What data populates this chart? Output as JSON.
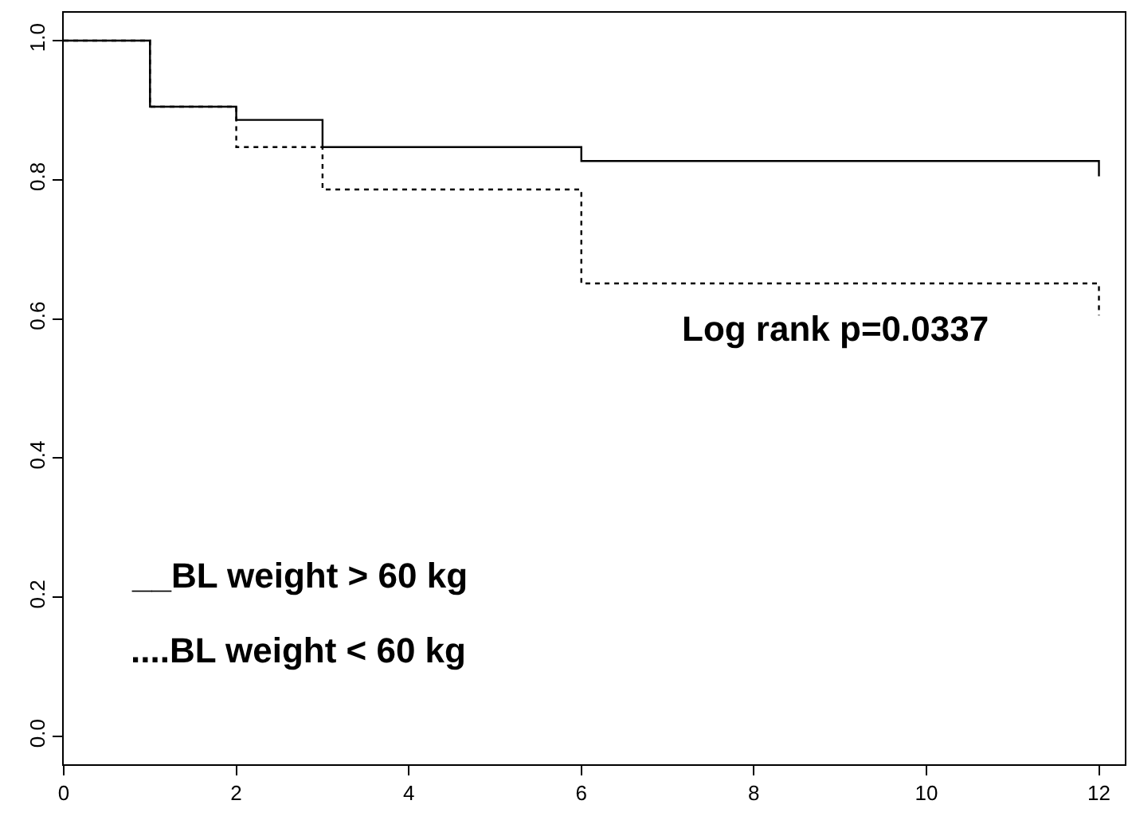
{
  "chart_data": {
    "type": "step",
    "xlim": [
      0,
      12.3
    ],
    "ylim": [
      -0.04,
      1.04
    ],
    "xticks": [
      0,
      2,
      4,
      6,
      8,
      10,
      12
    ],
    "yticks": [
      {
        "value": 0,
        "label": "0.0"
      },
      {
        "value": 0.2,
        "label": "0.2"
      },
      {
        "value": 0.4,
        "label": "0.4"
      },
      {
        "value": 0.6,
        "label": "0.6"
      },
      {
        "value": 0.8,
        "label": "0.8"
      },
      {
        "value": 1,
        "label": "1.0"
      }
    ],
    "series": [
      {
        "color": "#000000",
        "line_style": "solid",
        "x": [
          0,
          1,
          2,
          3,
          6,
          12,
          12
        ],
        "values": [
          1,
          0.905,
          0.886,
          0.847,
          0.827,
          0.827,
          0.805
        ]
      },
      {
        "color": "#000000",
        "line_style": "dotted",
        "x": [
          0,
          1,
          2,
          3,
          6,
          12,
          12
        ],
        "values": [
          1,
          0.905,
          0.847,
          0.786,
          0.651,
          0.651,
          0.605
        ]
      }
    ],
    "annotations": [
      "Log rank p=0.0337",
      "__BL weight > 60 kg",
      "....BL weight < 60 kg"
    ]
  }
}
